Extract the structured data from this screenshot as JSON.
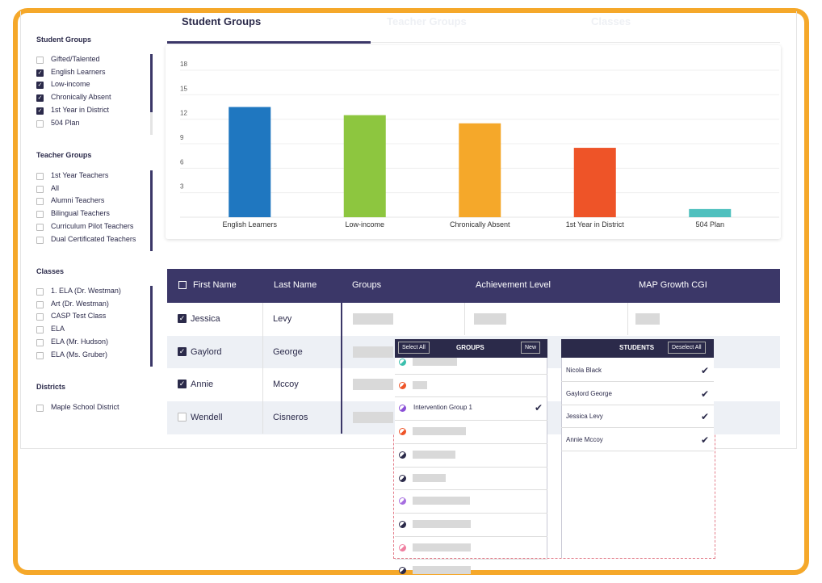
{
  "sidebar": [
    {
      "title": "Student Groups",
      "items": [
        {
          "label": "Gifted/Talented",
          "checked": false
        },
        {
          "label": "English Learners",
          "checked": true
        },
        {
          "label": "Low-income",
          "checked": true
        },
        {
          "label": "Chronically Absent",
          "checked": true
        },
        {
          "label": "1st Year in District",
          "checked": true
        },
        {
          "label": "504 Plan",
          "checked": false
        }
      ]
    },
    {
      "title": "Teacher Groups",
      "items": [
        {
          "label": "1st Year Teachers",
          "checked": false
        },
        {
          "label": "All",
          "checked": false
        },
        {
          "label": "Alumni Teachers",
          "checked": false
        },
        {
          "label": "Bilingual Teachers",
          "checked": false
        },
        {
          "label": "Curriculum Pilot Teachers",
          "checked": false
        },
        {
          "label": "Dual Certificated Teachers",
          "checked": false
        }
      ]
    },
    {
      "title": "Classes",
      "items": [
        {
          "label": "1. ELA (Dr. Westman)",
          "checked": false
        },
        {
          "label": "Art (Dr. Westman)",
          "checked": false
        },
        {
          "label": "CASP Test Class",
          "checked": false
        },
        {
          "label": "ELA",
          "checked": false
        },
        {
          "label": "ELA (Mr. Hudson)",
          "checked": false
        },
        {
          "label": "ELA (Ms. Gruber)",
          "checked": false
        }
      ]
    },
    {
      "title": "Districts",
      "items": [
        {
          "label": "Maple School District",
          "checked": false
        }
      ]
    }
  ],
  "tabs": [
    "Student Groups",
    "Teacher Groups",
    "Classes"
  ],
  "chart_data": {
    "type": "bar",
    "categories": [
      "English Learners",
      "Low-income",
      "Chronically Absent",
      "1st Year in District",
      "504 Plan"
    ],
    "values": [
      13.5,
      12.5,
      11.5,
      8.5,
      1
    ],
    "colors": [
      "#1f77c0",
      "#8dc63f",
      "#f5a82a",
      "#ee5428",
      "#4fc0be"
    ],
    "ylim": [
      0,
      18
    ],
    "yticks": [
      3,
      6,
      9,
      12,
      15,
      18
    ],
    "grid": true
  },
  "table": {
    "header_checked": false,
    "columns": [
      "First Name",
      "Last Name",
      "Groups",
      "Achievement Level",
      "MAP Growth CGI"
    ],
    "rows": [
      {
        "first": "Jessica",
        "last": "Levy",
        "checked": true
      },
      {
        "first": "Gaylord",
        "last": "George",
        "checked": true
      },
      {
        "first": "Annie",
        "last": "Mccoy",
        "checked": true
      },
      {
        "first": "Wendell",
        "last": "Cisneros",
        "checked": false
      }
    ]
  },
  "groups_panel": {
    "title": "GROUPS",
    "select_all": "Select All",
    "new": "New",
    "rows": [
      {
        "color": "#3bbfad"
      },
      {
        "color": "#ee5428"
      },
      {
        "color": "#8a4fd6",
        "label": "Intervention Group 1",
        "checked": true
      },
      {
        "color": "#ee5428"
      },
      {
        "color": "#2b2a4a"
      },
      {
        "color": "#2b2a4a"
      },
      {
        "color": "#a66ee0"
      },
      {
        "color": "#2b2a4a"
      },
      {
        "color": "#ef7fa0"
      },
      {
        "color": "#2b2a4a"
      }
    ]
  },
  "students_panel": {
    "title": "STUDENTS",
    "deselect_all": "Deselect All",
    "rows": [
      {
        "label": "Nicola Black",
        "checked": true
      },
      {
        "label": "Gaylord George",
        "checked": true
      },
      {
        "label": "Jessica Levy",
        "checked": true
      },
      {
        "label": "Annie Mccoy",
        "checked": true
      }
    ]
  }
}
